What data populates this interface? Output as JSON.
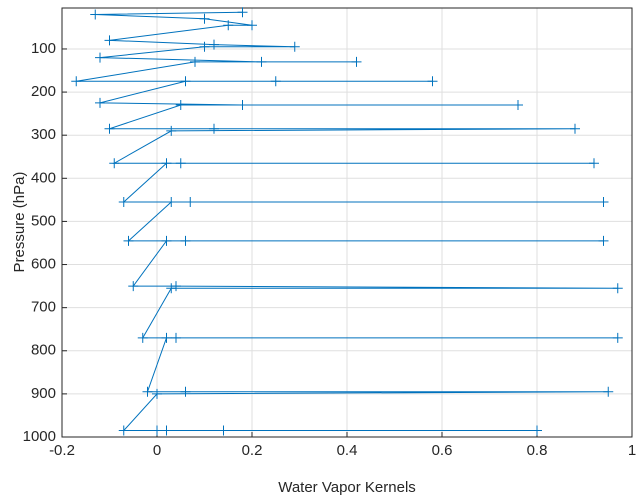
{
  "chart_data": {
    "type": "line",
    "xlabel": "Water Vapor Kernels",
    "ylabel": "Pressure (hPa)",
    "x": [
      0.8,
      0,
      0.02,
      0.14,
      -0.07,
      0,
      0.95,
      0.06,
      -0.02,
      0.02,
      0.97,
      0.04,
      -0.03,
      0.03,
      0.97,
      0.04,
      -0.05,
      0.02,
      0.94,
      0.06,
      -0.06,
      0.03,
      0.94,
      0.07,
      -0.07,
      0.02,
      0.92,
      0.05,
      -0.09,
      0.03,
      0.88,
      0.12,
      -0.1,
      0.05,
      0.76,
      0.18,
      -0.12,
      0.06,
      0.58,
      0.25,
      -0.17,
      0.08,
      0.42,
      0.22,
      -0.12,
      0.1,
      0.29,
      0.12,
      -0.1,
      0.15,
      0.2,
      0.1,
      -0.13,
      0.18
    ],
    "series": [
      {
        "color": "#0072bd",
        "marker": "+",
        "values": [
          985,
          985,
          985,
          985,
          985,
          900,
          895,
          895,
          895,
          770,
          770,
          770,
          770,
          655,
          655,
          650,
          650,
          545,
          545,
          545,
          545,
          455,
          455,
          455,
          455,
          365,
          365,
          365,
          365,
          290,
          285,
          285,
          285,
          230,
          230,
          230,
          225,
          175,
          175,
          175,
          175,
          130,
          130,
          130,
          120,
          95,
          95,
          90,
          80,
          45,
          45,
          30,
          20,
          15
        ]
      }
    ],
    "xlim": [
      -0.2,
      1
    ],
    "xticks": [
      -0.2,
      0,
      0.2,
      0.4,
      0.6,
      0.8,
      1
    ],
    "ylim": [
      5,
      1000
    ],
    "yticks": [
      100,
      200,
      300,
      400,
      500,
      600,
      700,
      800,
      900,
      1000
    ],
    "y_reversed": true,
    "grid": true
  }
}
